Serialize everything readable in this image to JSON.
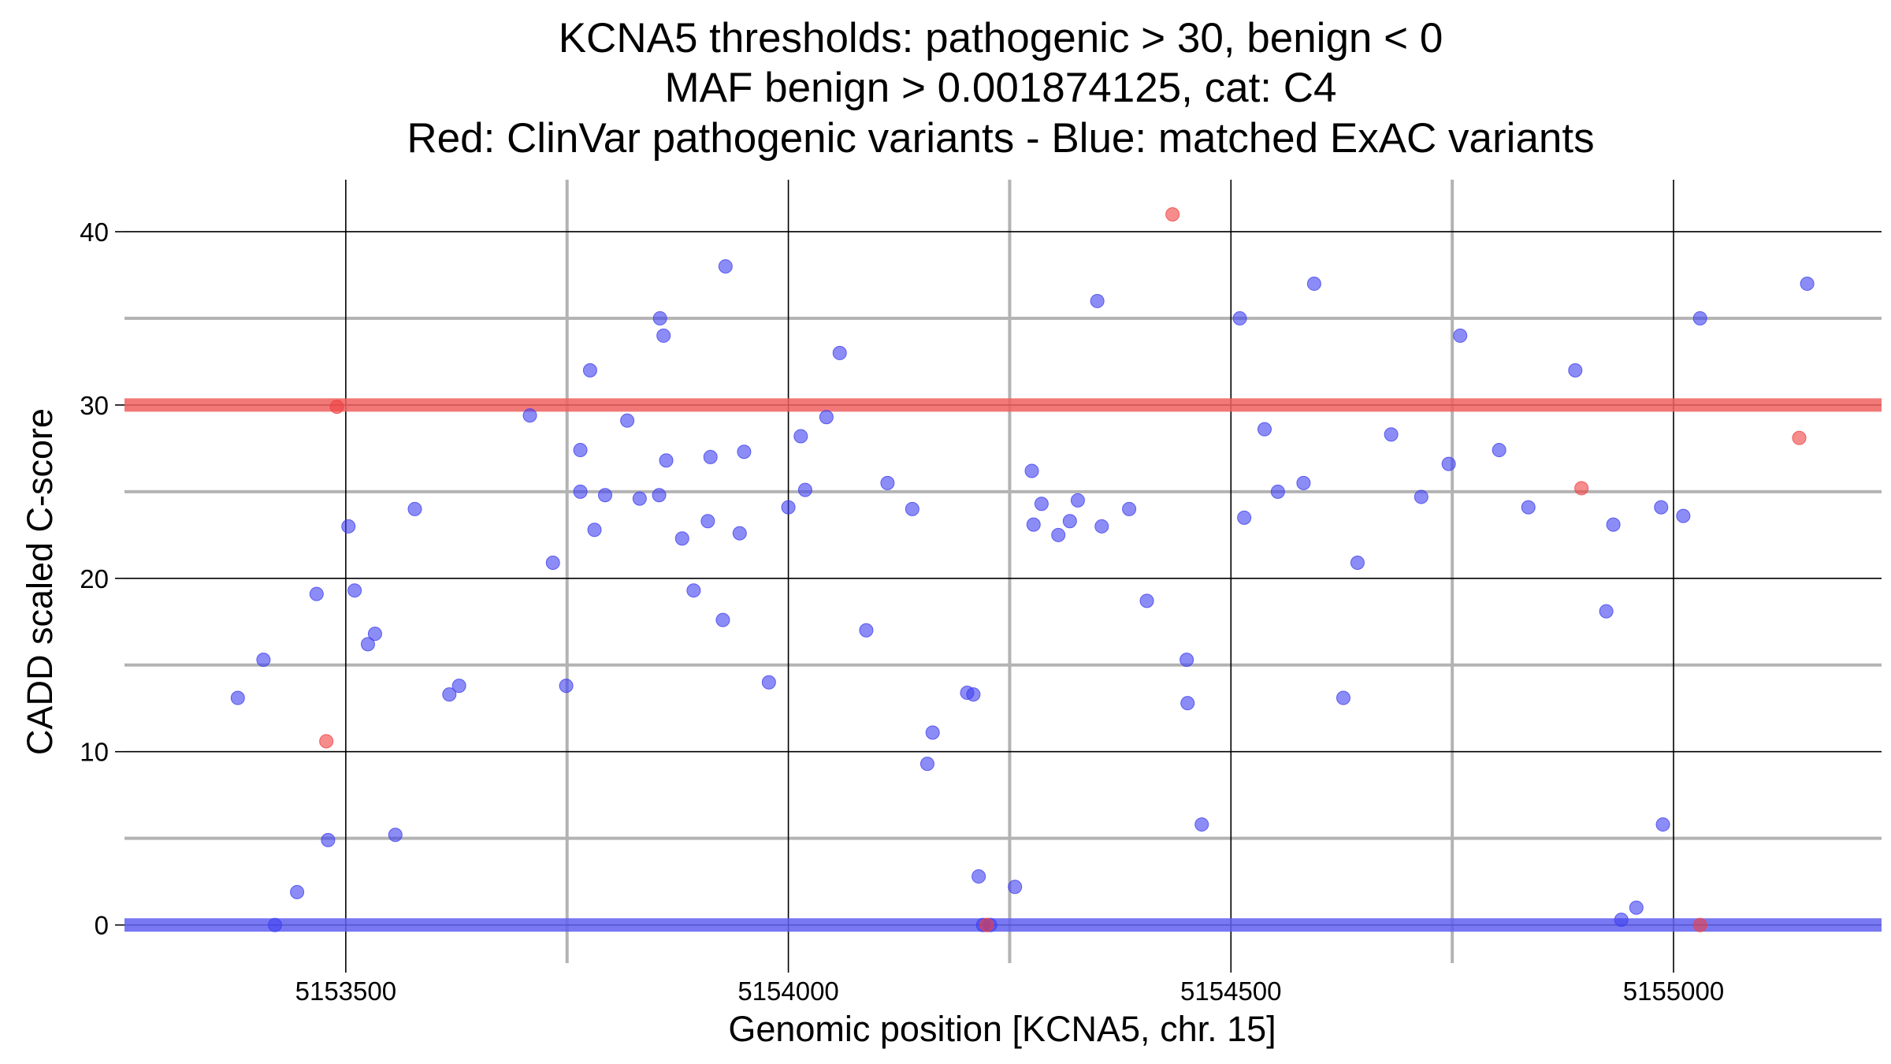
{
  "chart_data": {
    "type": "scatter",
    "title_lines": [
      "KCNA5 thresholds: pathogenic > 30, benign < 0",
      "MAF benign > 0.001874125, cat: C4",
      "Red: ClinVar pathogenic variants - Blue: matched ExAC variants"
    ],
    "xlabel": "Genomic position [KCNA5, chr. 15]",
    "ylabel": "CADD scaled C-score",
    "xlim": [
      5153250,
      5155235
    ],
    "ylim": [
      -2.2,
      43
    ],
    "x_major_ticks": [
      5153500,
      5154000,
      5154500,
      5155000
    ],
    "x_minor_ticks": [
      5153750,
      5154250,
      5154750
    ],
    "y_major_ticks": [
      0,
      10,
      20,
      30,
      40
    ],
    "y_minor_ticks": [
      5,
      15,
      25,
      35
    ],
    "thresholds": [
      {
        "name": "pathogenic",
        "value": 30,
        "color": "#f06060"
      },
      {
        "name": "benign",
        "value": 0,
        "color": "#6060f0"
      }
    ],
    "grid": true,
    "legend": "none",
    "series": [
      {
        "name": "ClinVar pathogenic",
        "color": "#f04040",
        "points": [
          [
            5153478,
            10.6
          ],
          [
            5153490,
            29.9
          ],
          [
            5154434,
            41.0
          ],
          [
            5154224,
            0.0
          ],
          [
            5154896,
            25.2
          ],
          [
            5155030,
            0.0
          ],
          [
            5155142,
            28.1
          ]
        ]
      },
      {
        "name": "matched ExAC",
        "color": "#4040f0",
        "points": [
          [
            5153378,
            13.1
          ],
          [
            5153407,
            15.3
          ],
          [
            5153420,
            0.0
          ],
          [
            5153445,
            1.9
          ],
          [
            5153467,
            19.1
          ],
          [
            5153480,
            4.9
          ],
          [
            5153503,
            23.0
          ],
          [
            5153510,
            19.3
          ],
          [
            5153525,
            16.2
          ],
          [
            5153533,
            16.8
          ],
          [
            5153556,
            5.2
          ],
          [
            5153578,
            24.0
          ],
          [
            5153617,
            13.3
          ],
          [
            5153628,
            13.8
          ],
          [
            5153708,
            29.4
          ],
          [
            5153734,
            20.9
          ],
          [
            5153749,
            13.8
          ],
          [
            5153765,
            27.4
          ],
          [
            5153765,
            25.0
          ],
          [
            5153781,
            22.8
          ],
          [
            5153776,
            32.0
          ],
          [
            5153793,
            24.8
          ],
          [
            5153818,
            29.1
          ],
          [
            5153832,
            24.6
          ],
          [
            5153855,
            35.0
          ],
          [
            5153859,
            34.0
          ],
          [
            5153862,
            26.8
          ],
          [
            5153854,
            24.8
          ],
          [
            5153880,
            22.3
          ],
          [
            5153893,
            19.3
          ],
          [
            5153909,
            23.3
          ],
          [
            5153912,
            27.0
          ],
          [
            5153926,
            17.6
          ],
          [
            5153929,
            38.0
          ],
          [
            5153945,
            22.6
          ],
          [
            5153950,
            27.3
          ],
          [
            5153978,
            14.0
          ],
          [
            5154000,
            24.1
          ],
          [
            5154014,
            28.2
          ],
          [
            5154019,
            25.1
          ],
          [
            5154043,
            29.3
          ],
          [
            5154058,
            33.0
          ],
          [
            5154088,
            17.0
          ],
          [
            5154112,
            25.5
          ],
          [
            5154140,
            24.0
          ],
          [
            5154157,
            9.3
          ],
          [
            5154163,
            11.1
          ],
          [
            5154202,
            13.4
          ],
          [
            5154209,
            13.3
          ],
          [
            5154215,
            2.8
          ],
          [
            5154220,
            0.0
          ],
          [
            5154228,
            0.0
          ],
          [
            5154256,
            2.2
          ],
          [
            5154275,
            26.2
          ],
          [
            5154277,
            23.1
          ],
          [
            5154286,
            24.3
          ],
          [
            5154305,
            22.5
          ],
          [
            5154318,
            23.3
          ],
          [
            5154327,
            24.5
          ],
          [
            5154349,
            36.0
          ],
          [
            5154354,
            23.0
          ],
          [
            5154385,
            24.0
          ],
          [
            5154405,
            18.7
          ],
          [
            5154450,
            15.3
          ],
          [
            5154451,
            12.8
          ],
          [
            5154467,
            5.8
          ],
          [
            5154510,
            35.0
          ],
          [
            5154515,
            23.5
          ],
          [
            5154538,
            28.6
          ],
          [
            5154553,
            25.0
          ],
          [
            5154594,
            37.0
          ],
          [
            5154582,
            25.5
          ],
          [
            5154627,
            13.1
          ],
          [
            5154643,
            20.9
          ],
          [
            5154681,
            28.3
          ],
          [
            5154715,
            24.7
          ],
          [
            5154746,
            26.6
          ],
          [
            5154759,
            34.0
          ],
          [
            5154803,
            27.4
          ],
          [
            5154836,
            24.1
          ],
          [
            5154889,
            32.0
          ],
          [
            5154924,
            18.1
          ],
          [
            5154932,
            23.1
          ],
          [
            5154941,
            0.3
          ],
          [
            5154958,
            1.0
          ],
          [
            5154986,
            24.1
          ],
          [
            5154988,
            5.8
          ],
          [
            5155011,
            23.6
          ],
          [
            5155030,
            35.0
          ],
          [
            5155151,
            37.0
          ]
        ]
      }
    ]
  }
}
